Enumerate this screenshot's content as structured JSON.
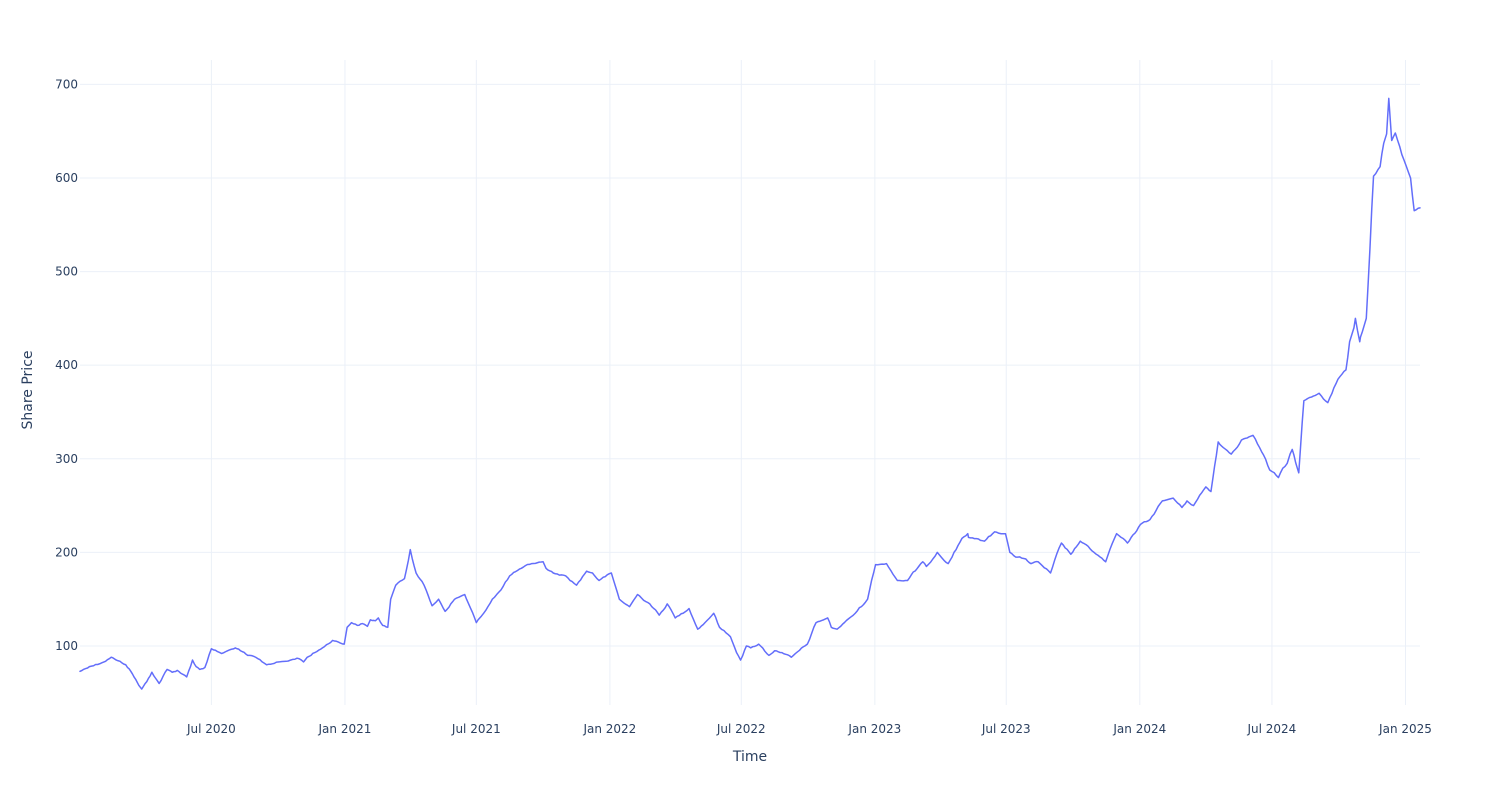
{
  "chart_data": {
    "type": "line",
    "title": "",
    "xlabel": "Time",
    "ylabel": "Share Price",
    "xlim": [
      "2020-01-02",
      "2025-01-21"
    ],
    "ylim": [
      37,
      726
    ],
    "grid": true,
    "legend": "none",
    "x_ticks": [
      {
        "date": "2020-07-01",
        "label": "Jul 2020"
      },
      {
        "date": "2021-01-01",
        "label": "Jan 2021"
      },
      {
        "date": "2021-07-01",
        "label": "Jul 2021"
      },
      {
        "date": "2022-01-01",
        "label": "Jan 2022"
      },
      {
        "date": "2022-07-01",
        "label": "Jul 2022"
      },
      {
        "date": "2023-01-01",
        "label": "Jan 2023"
      },
      {
        "date": "2023-07-01",
        "label": "Jul 2023"
      },
      {
        "date": "2024-01-01",
        "label": "Jan 2024"
      },
      {
        "date": "2024-07-01",
        "label": "Jul 2024"
      },
      {
        "date": "2025-01-01",
        "label": "Jan 2025"
      }
    ],
    "y_ticks": [
      100,
      200,
      300,
      400,
      500,
      600,
      700
    ],
    "colors": {
      "line": "#636efa",
      "grid": "#ebf0f8",
      "text": "#2a3f5f"
    },
    "series": [
      {
        "x": [
          "2020-01-02",
          "2020-01-15",
          "2020-02-01",
          "2020-02-14",
          "2020-02-21",
          "2020-03-05",
          "2020-03-12",
          "2020-03-19",
          "2020-03-23",
          "2020-03-27",
          "2020-04-03",
          "2020-04-10",
          "2020-04-20",
          "2020-05-01",
          "2020-05-08",
          "2020-05-15",
          "2020-05-22",
          "2020-05-28",
          "2020-06-05",
          "2020-06-10",
          "2020-06-15",
          "2020-06-22",
          "2020-07-01",
          "2020-07-15",
          "2020-08-03",
          "2020-08-10",
          "2020-08-20",
          "2020-08-31",
          "2020-09-15",
          "2020-10-01",
          "2020-10-15",
          "2020-10-27",
          "2020-11-02",
          "2020-11-05",
          "2020-11-10",
          "2020-12-01",
          "2020-12-15",
          "2020-12-31",
          "2021-01-04",
          "2021-01-10",
          "2021-01-18",
          "2021-01-25",
          "2021-02-01",
          "2021-02-05",
          "2021-02-12",
          "2021-02-16",
          "2021-02-22",
          "2021-03-01",
          "2021-03-05",
          "2021-03-12",
          "2021-03-24",
          "2021-04-01",
          "2021-04-09",
          "2021-04-20",
          "2021-05-01",
          "2021-05-10",
          "2021-05-19",
          "2021-06-01",
          "2021-06-15",
          "2021-07-01",
          "2021-07-08",
          "2021-07-23",
          "2021-08-04",
          "2021-08-16",
          "2021-09-01",
          "2021-09-15",
          "2021-10-01",
          "2021-10-05",
          "2021-10-15",
          "2021-11-01",
          "2021-11-16",
          "2021-11-30",
          "2021-12-08",
          "2021-12-17",
          "2022-01-03",
          "2022-01-14",
          "2022-01-28",
          "2022-02-08",
          "2022-02-25",
          "2022-03-10",
          "2022-03-21",
          "2022-04-01",
          "2022-04-20",
          "2022-05-02",
          "2022-05-12",
          "2022-05-24",
          "2022-06-01",
          "2022-06-16",
          "2022-06-30",
          "2022-07-08",
          "2022-07-14",
          "2022-07-25",
          "2022-08-08",
          "2022-08-16",
          "2022-08-26",
          "2022-09-08",
          "2022-09-30",
          "2022-10-12",
          "2022-10-28",
          "2022-11-02",
          "2022-11-10",
          "2022-11-20",
          "2022-12-05",
          "2022-12-22",
          "2023-01-02",
          "2023-01-17",
          "2023-02-01",
          "2023-02-15",
          "2023-03-08",
          "2023-03-13",
          "2023-03-28",
          "2023-04-12",
          "2023-05-01",
          "2023-05-09",
          "2023-05-10",
          "2023-06-01",
          "2023-06-15",
          "2023-06-30",
          "2023-07-06",
          "2023-07-14",
          "2023-07-28",
          "2023-08-04",
          "2023-08-14",
          "2023-08-31",
          "2023-09-15",
          "2023-09-28",
          "2023-10-11",
          "2023-10-30",
          "2023-11-15",
          "2023-11-30",
          "2023-12-15",
          "2024-01-02",
          "2024-01-15",
          "2024-02-01",
          "2024-02-16",
          "2024-02-28",
          "2024-03-06",
          "2024-03-15",
          "2024-04-01",
          "2024-04-08",
          "2024-04-18",
          "2024-04-25",
          "2024-05-06",
          "2024-05-20",
          "2024-06-05",
          "2024-06-14",
          "2024-06-28",
          "2024-07-10",
          "2024-07-16",
          "2024-07-22",
          "2024-07-26",
          "2024-07-29",
          "2024-08-05",
          "2024-08-07",
          "2024-08-14",
          "2024-09-04",
          "2024-09-16",
          "2024-09-30",
          "2024-10-11",
          "2024-10-16",
          "2024-10-22",
          "2024-10-24",
          "2024-10-30",
          "2024-10-31",
          "2024-11-08",
          "2024-11-18",
          "2024-11-27",
          "2024-12-02",
          "2024-12-06",
          "2024-12-09",
          "2024-12-13",
          "2024-12-18",
          "2024-12-27",
          "2025-01-08",
          "2025-01-13",
          "2025-01-21"
        ],
        "y": [
          73,
          78,
          82,
          88,
          85,
          80,
          73,
          64,
          58,
          54,
          62,
          72,
          60,
          75,
          72,
          74,
          70,
          67,
          85,
          78,
          75,
          77,
          97,
          92,
          98,
          95,
          90,
          88,
          80,
          83,
          84,
          87,
          85,
          83,
          88,
          98,
          106,
          102,
          120,
          125,
          122,
          124,
          121,
          128,
          127,
          130,
          122,
          120,
          150,
          165,
          172,
          203,
          178,
          165,
          143,
          150,
          137,
          150,
          155,
          125,
          132,
          150,
          160,
          175,
          183,
          188,
          190,
          183,
          178,
          175,
          165,
          180,
          178,
          170,
          178,
          150,
          142,
          155,
          145,
          133,
          145,
          130,
          140,
          118,
          125,
          135,
          120,
          110,
          85,
          100,
          98,
          102,
          90,
          95,
          93,
          88,
          102,
          125,
          130,
          120,
          118,
          125,
          135,
          150,
          187,
          188,
          170,
          170,
          190,
          185,
          200,
          188,
          215,
          220,
          216,
          212,
          222,
          220,
          200,
          195,
          193,
          188,
          190,
          178,
          210,
          198,
          212,
          200,
          190,
          220,
          210,
          230,
          235,
          255,
          258,
          248,
          255,
          250,
          270,
          265,
          318,
          312,
          305,
          320,
          325,
          312,
          288,
          280,
          290,
          295,
          305,
          310,
          290,
          285,
          362,
          370,
          360,
          385,
          395,
          425,
          440,
          450,
          425,
          430,
          450,
          602,
          612,
          637,
          647,
          685,
          640,
          648,
          625,
          600,
          565,
          568
        ]
      }
    ]
  }
}
